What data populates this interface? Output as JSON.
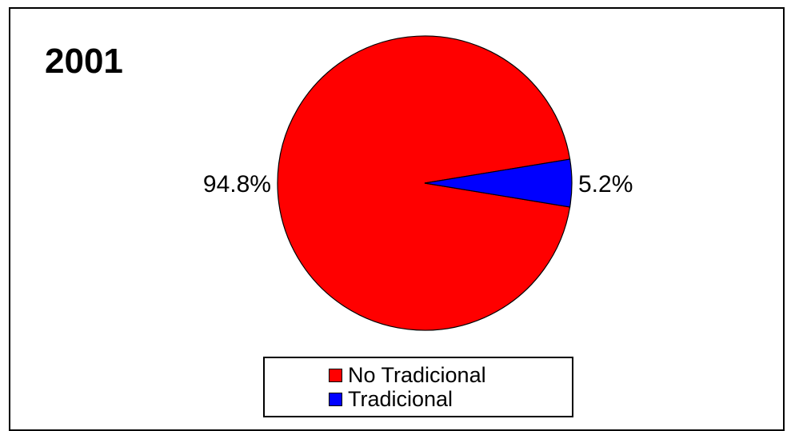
{
  "chart_data": {
    "type": "pie",
    "title": "2001",
    "slices": [
      {
        "label": "No Tradicional",
        "value": 94.8,
        "value_label": "94.8%",
        "color": "#ff0000"
      },
      {
        "label": "Tradicional",
        "value": 5.2,
        "value_label": "5.2%",
        "color": "#0000ff"
      }
    ],
    "legend_placement": "bottom",
    "stroke_color": "#000000"
  }
}
